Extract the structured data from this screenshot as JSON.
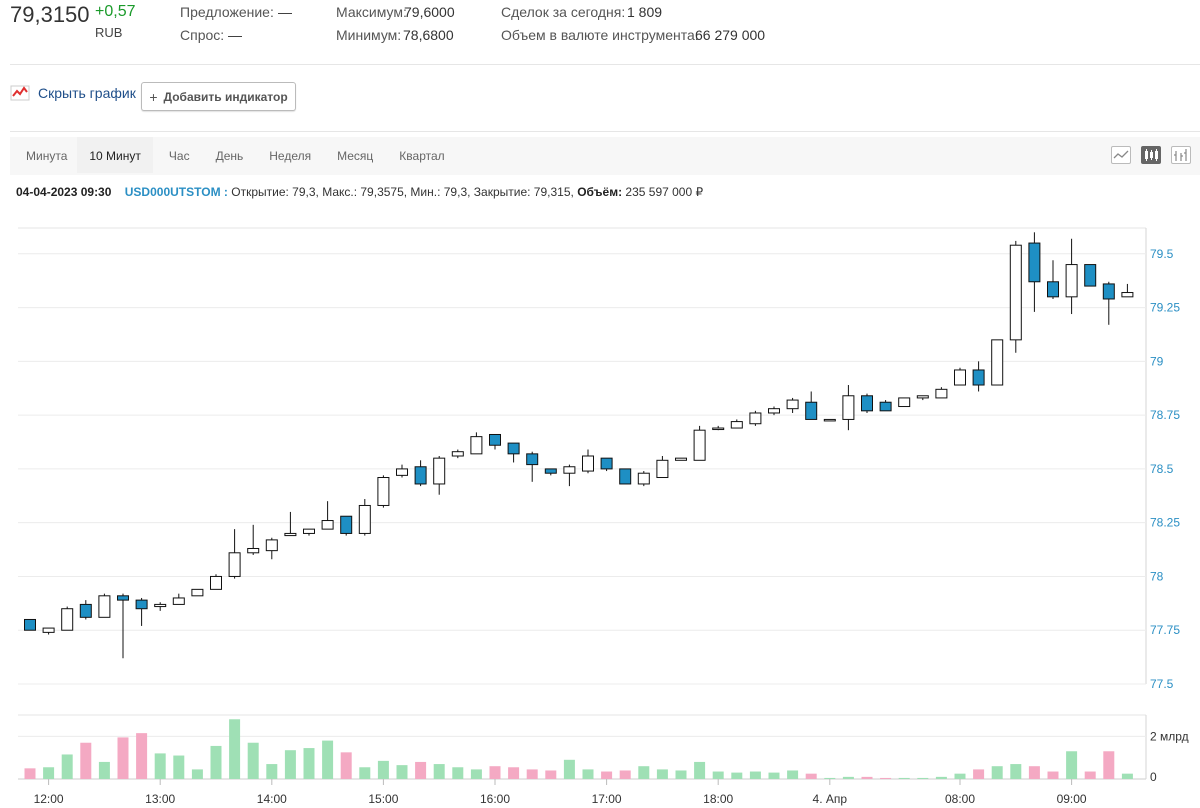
{
  "quote": {
    "price": "79,3150",
    "change": "+0,57",
    "currency": "RUB",
    "offer_label": "Предложение:",
    "offer_value": "—",
    "demand_label": "Спрос:",
    "demand_value": "—",
    "max_label": "Максимум:",
    "max_value": "79,6000",
    "min_label": "Минимум:",
    "min_value": "78,6800",
    "deals_label": "Сделок за сегодня:",
    "deals_value": "1 809",
    "volume_label": "Объем в валюте инструмента:",
    "volume_value": "66 279 000"
  },
  "controls": {
    "hide_chart": "Скрыть график",
    "add_indicator_plus": "+",
    "add_indicator": "Добавить индикатор"
  },
  "periods": [
    {
      "label": "Минута",
      "active": false
    },
    {
      "label": "10 Минут",
      "active": true
    },
    {
      "label": "Час",
      "active": false
    },
    {
      "label": "День",
      "active": false
    },
    {
      "label": "Неделя",
      "active": false
    },
    {
      "label": "Месяц",
      "active": false
    },
    {
      "label": "Квартал",
      "active": false
    }
  ],
  "chart_types": [
    {
      "name": "line-chart-icon",
      "active": false
    },
    {
      "name": "candles-chart-icon",
      "active": true
    },
    {
      "name": "bars-chart-icon",
      "active": false
    }
  ],
  "info_bar": {
    "datetime": "04-04-2023 09:30",
    "ticker": "USD000UTSTOM :",
    "ohlc": "Открытие: 79,3, Макс.: 79,3575, Мин.: 79,3, Закрытие: 79,315,",
    "volume_label": "Объём:",
    "volume_value": "235 597 000 ₽"
  },
  "colors": {
    "up_fill": "#ffffff",
    "down_fill": "#1e8fc4",
    "volume_up": "#9fe0b5",
    "volume_down": "#f4a9c3",
    "axis_label": "#2b8fc4"
  },
  "chart_data": {
    "type": "candlestick",
    "ylim": [
      77.5,
      79.62
    ],
    "yticks": [
      "79.5",
      "79.25",
      "79",
      "78.75",
      "78.5",
      "78.25",
      "78",
      "77.75",
      "77.5"
    ],
    "ytick_values": [
      79.5,
      79.25,
      79,
      78.75,
      78.5,
      78.25,
      78,
      77.75,
      77.5
    ],
    "x_labels": [
      "12:00",
      "13:00",
      "14:00",
      "15:00",
      "16:00",
      "17:00",
      "18:00",
      "4. Апр",
      "08:00",
      "09:00"
    ],
    "x_label_slots": [
      1,
      7,
      13,
      19,
      25,
      31,
      37,
      43,
      50,
      56
    ],
    "volume_axis": [
      "2 млрд",
      "0"
    ],
    "volume_max_bn": 3.0,
    "candles": [
      {
        "o": 77.8,
        "h": 77.8,
        "l": 77.75,
        "c": 77.75,
        "v": 0.5
      },
      {
        "o": 77.74,
        "h": 77.76,
        "l": 77.73,
        "c": 77.76,
        "v": 0.55
      },
      {
        "o": 77.75,
        "h": 77.86,
        "l": 77.75,
        "c": 77.85,
        "v": 1.15
      },
      {
        "o": 77.87,
        "h": 77.89,
        "l": 77.8,
        "c": 77.81,
        "v": 1.7
      },
      {
        "o": 77.81,
        "h": 77.92,
        "l": 77.81,
        "c": 77.91,
        "v": 0.8
      },
      {
        "o": 77.91,
        "h": 77.92,
        "l": 77.62,
        "c": 77.89,
        "v": 1.95
      },
      {
        "o": 77.89,
        "h": 77.9,
        "l": 77.77,
        "c": 77.85,
        "v": 2.15
      },
      {
        "o": 77.86,
        "h": 77.88,
        "l": 77.84,
        "c": 77.87,
        "v": 1.2
      },
      {
        "o": 77.87,
        "h": 77.92,
        "l": 77.87,
        "c": 77.9,
        "v": 1.1
      },
      {
        "o": 77.91,
        "h": 77.94,
        "l": 77.91,
        "c": 77.94,
        "v": 0.45
      },
      {
        "o": 77.94,
        "h": 78.01,
        "l": 77.94,
        "c": 78.0,
        "v": 1.55
      },
      {
        "o": 78.0,
        "h": 78.22,
        "l": 77.99,
        "c": 78.11,
        "v": 2.8
      },
      {
        "o": 78.11,
        "h": 78.24,
        "l": 78.1,
        "c": 78.13,
        "v": 1.7
      },
      {
        "o": 78.12,
        "h": 78.18,
        "l": 78.08,
        "c": 78.17,
        "v": 0.7
      },
      {
        "o": 78.19,
        "h": 78.3,
        "l": 78.19,
        "c": 78.2,
        "v": 1.35
      },
      {
        "o": 78.2,
        "h": 78.22,
        "l": 78.19,
        "c": 78.22,
        "v": 1.45
      },
      {
        "o": 78.22,
        "h": 78.35,
        "l": 78.22,
        "c": 78.26,
        "v": 1.8
      },
      {
        "o": 78.28,
        "h": 78.28,
        "l": 78.19,
        "c": 78.2,
        "v": 1.25
      },
      {
        "o": 78.2,
        "h": 78.36,
        "l": 78.19,
        "c": 78.33,
        "v": 0.55
      },
      {
        "o": 78.33,
        "h": 78.47,
        "l": 78.32,
        "c": 78.46,
        "v": 0.85
      },
      {
        "o": 78.47,
        "h": 78.52,
        "l": 78.46,
        "c": 78.5,
        "v": 0.65
      },
      {
        "o": 78.51,
        "h": 78.54,
        "l": 78.42,
        "c": 78.43,
        "v": 0.8
      },
      {
        "o": 78.43,
        "h": 78.56,
        "l": 78.38,
        "c": 78.55,
        "v": 0.7
      },
      {
        "o": 78.56,
        "h": 78.59,
        "l": 78.55,
        "c": 78.58,
        "v": 0.55
      },
      {
        "o": 78.57,
        "h": 78.67,
        "l": 78.57,
        "c": 78.65,
        "v": 0.45
      },
      {
        "o": 78.66,
        "h": 78.66,
        "l": 78.59,
        "c": 78.61,
        "v": 0.6
      },
      {
        "o": 78.62,
        "h": 78.62,
        "l": 78.53,
        "c": 78.57,
        "v": 0.55
      },
      {
        "o": 78.57,
        "h": 78.58,
        "l": 78.44,
        "c": 78.52,
        "v": 0.45
      },
      {
        "o": 78.5,
        "h": 78.5,
        "l": 78.47,
        "c": 78.48,
        "v": 0.4
      },
      {
        "o": 78.48,
        "h": 78.52,
        "l": 78.42,
        "c": 78.51,
        "v": 0.9
      },
      {
        "o": 78.49,
        "h": 78.59,
        "l": 78.48,
        "c": 78.56,
        "v": 0.45
      },
      {
        "o": 78.55,
        "h": 78.55,
        "l": 78.49,
        "c": 78.5,
        "v": 0.35
      },
      {
        "o": 78.5,
        "h": 78.5,
        "l": 78.43,
        "c": 78.43,
        "v": 0.4
      },
      {
        "o": 78.43,
        "h": 78.49,
        "l": 78.42,
        "c": 78.48,
        "v": 0.6
      },
      {
        "o": 78.46,
        "h": 78.56,
        "l": 78.46,
        "c": 78.54,
        "v": 0.45
      },
      {
        "o": 78.54,
        "h": 78.55,
        "l": 78.54,
        "c": 78.55,
        "v": 0.4
      },
      {
        "o": 78.54,
        "h": 78.7,
        "l": 78.54,
        "c": 78.68,
        "v": 0.8
      },
      {
        "o": 78.69,
        "h": 78.7,
        "l": 78.68,
        "c": 78.69,
        "v": 0.35
      },
      {
        "o": 78.69,
        "h": 78.73,
        "l": 78.69,
        "c": 78.72,
        "v": 0.3
      },
      {
        "o": 78.71,
        "h": 78.77,
        "l": 78.7,
        "c": 78.76,
        "v": 0.35
      },
      {
        "o": 78.76,
        "h": 78.79,
        "l": 78.75,
        "c": 78.78,
        "v": 0.3
      },
      {
        "o": 78.78,
        "h": 78.83,
        "l": 78.76,
        "c": 78.82,
        "v": 0.4
      },
      {
        "o": 78.81,
        "h": 78.86,
        "l": 78.73,
        "c": 78.73,
        "v": 0.25
      },
      {
        "o": 78.73,
        "h": 78.73,
        "l": 78.73,
        "c": 78.73,
        "v": 0.05
      },
      {
        "o": 78.73,
        "h": 78.89,
        "l": 78.68,
        "c": 78.84,
        "v": 0.1
      },
      {
        "o": 78.84,
        "h": 78.85,
        "l": 78.76,
        "c": 78.77,
        "v": 0.1
      },
      {
        "o": 78.81,
        "h": 78.82,
        "l": 78.77,
        "c": 78.77,
        "v": 0.05
      },
      {
        "o": 78.79,
        "h": 78.83,
        "l": 78.79,
        "c": 78.83,
        "v": 0.05
      },
      {
        "o": 78.83,
        "h": 78.84,
        "l": 78.82,
        "c": 78.84,
        "v": 0.05
      },
      {
        "o": 78.83,
        "h": 78.88,
        "l": 78.83,
        "c": 78.87,
        "v": 0.1
      },
      {
        "o": 78.89,
        "h": 78.97,
        "l": 78.89,
        "c": 78.96,
        "v": 0.25
      },
      {
        "o": 78.96,
        "h": 79.0,
        "l": 78.86,
        "c": 78.89,
        "v": 0.45
      },
      {
        "o": 78.89,
        "h": 79.1,
        "l": 78.89,
        "c": 79.1,
        "v": 0.6
      },
      {
        "o": 79.1,
        "h": 79.56,
        "l": 79.04,
        "c": 79.54,
        "v": 0.7
      },
      {
        "o": 79.55,
        "h": 79.6,
        "l": 79.23,
        "c": 79.37,
        "v": 0.6
      },
      {
        "o": 79.37,
        "h": 79.47,
        "l": 79.29,
        "c": 79.3,
        "v": 0.35
      },
      {
        "o": 79.3,
        "h": 79.57,
        "l": 79.22,
        "c": 79.45,
        "v": 1.3
      },
      {
        "o": 79.45,
        "h": 79.45,
        "l": 79.35,
        "c": 79.35,
        "v": 0.35
      },
      {
        "o": 79.36,
        "h": 79.37,
        "l": 79.17,
        "c": 79.29,
        "v": 1.3
      },
      {
        "o": 79.3,
        "h": 79.36,
        "l": 79.3,
        "c": 79.32,
        "v": 0.25
      }
    ]
  }
}
